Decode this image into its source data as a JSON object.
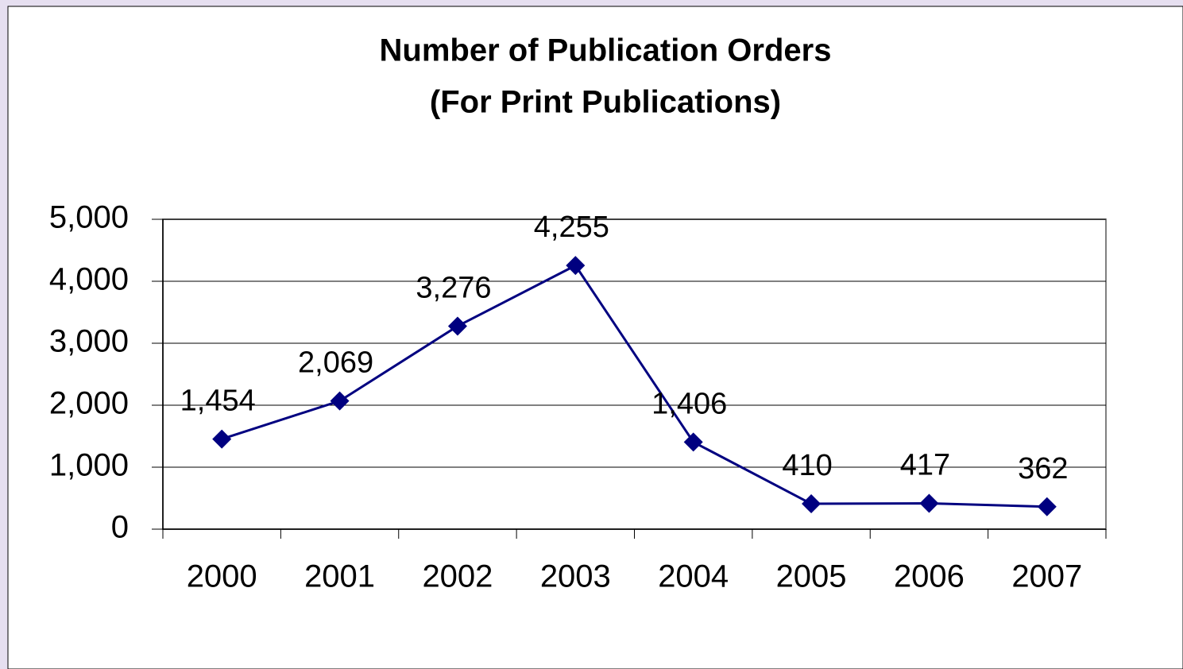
{
  "chart_data": {
    "type": "line",
    "title": "Number of Publication Orders",
    "subtitle": "(For Print Publications)",
    "categories": [
      "2000",
      "2001",
      "2002",
      "2003",
      "2004",
      "2005",
      "2006",
      "2007"
    ],
    "values": [
      1454,
      2069,
      3276,
      4255,
      1406,
      410,
      417,
      362
    ],
    "value_labels": [
      "1,454",
      "2,069",
      "3,276",
      "4,255",
      "1,406",
      "410",
      "417",
      "362"
    ],
    "color": "#000080",
    "ylim": [
      0,
      5000
    ],
    "yticks": [
      0,
      {
        "value": 1000,
        "label": "1,000"
      },
      {
        "value": 2000,
        "label": "2,000"
      },
      {
        "value": 3000,
        "label": "3,000"
      },
      {
        "value": 4000,
        "label": "4,000"
      },
      {
        "value": 5000,
        "label": "5,000"
      }
    ],
    "grid": true
  }
}
